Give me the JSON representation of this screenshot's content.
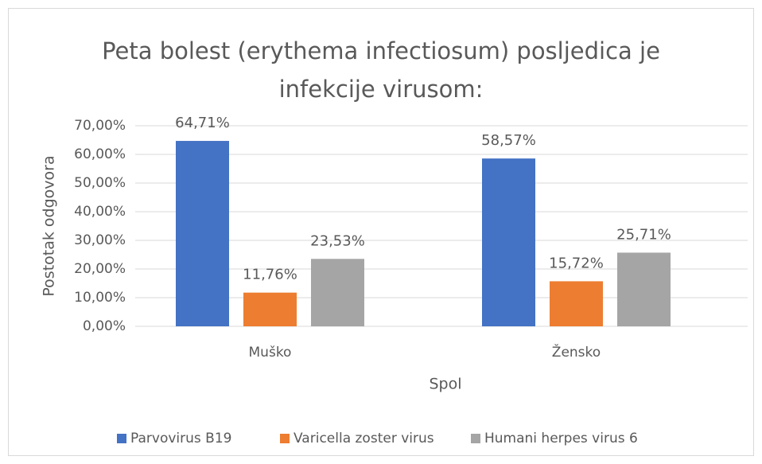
{
  "chart_data": {
    "type": "bar",
    "title": "Peta bolest (erythema infectiosum) posljedica je infekcije virusom:",
    "x_label": "Spol",
    "y_label": "Postotak odgovora",
    "categories": [
      "Muško",
      "Žensko"
    ],
    "series": [
      {
        "name": "Parvovirus B19",
        "color": "#4472c4",
        "values": [
          64.71,
          58.57
        ],
        "value_labels": [
          "64,71%",
          "58,57%"
        ]
      },
      {
        "name": "Varicella zoster virus",
        "color": "#ed7d31",
        "values": [
          11.76,
          15.72
        ],
        "value_labels": [
          "11,76%",
          "15,72%"
        ]
      },
      {
        "name": "Humani herpes virus 6",
        "color": "#a5a5a5",
        "values": [
          23.53,
          25.71
        ],
        "value_labels": [
          "23,53%",
          "25,71%"
        ]
      }
    ],
    "ylim": [
      0,
      70
    ],
    "yticks": [
      {
        "value": 0,
        "label": "0,00%"
      },
      {
        "value": 10,
        "label": "10,00%"
      },
      {
        "value": 20,
        "label": "20,00%"
      },
      {
        "value": 30,
        "label": "30,00%"
      },
      {
        "value": 40,
        "label": "40,00%"
      },
      {
        "value": 50,
        "label": "50,00%"
      },
      {
        "value": 60,
        "label": "60,00%"
      },
      {
        "value": 70,
        "label": "70,00%"
      }
    ],
    "grid": true,
    "legend": "bottom"
  }
}
